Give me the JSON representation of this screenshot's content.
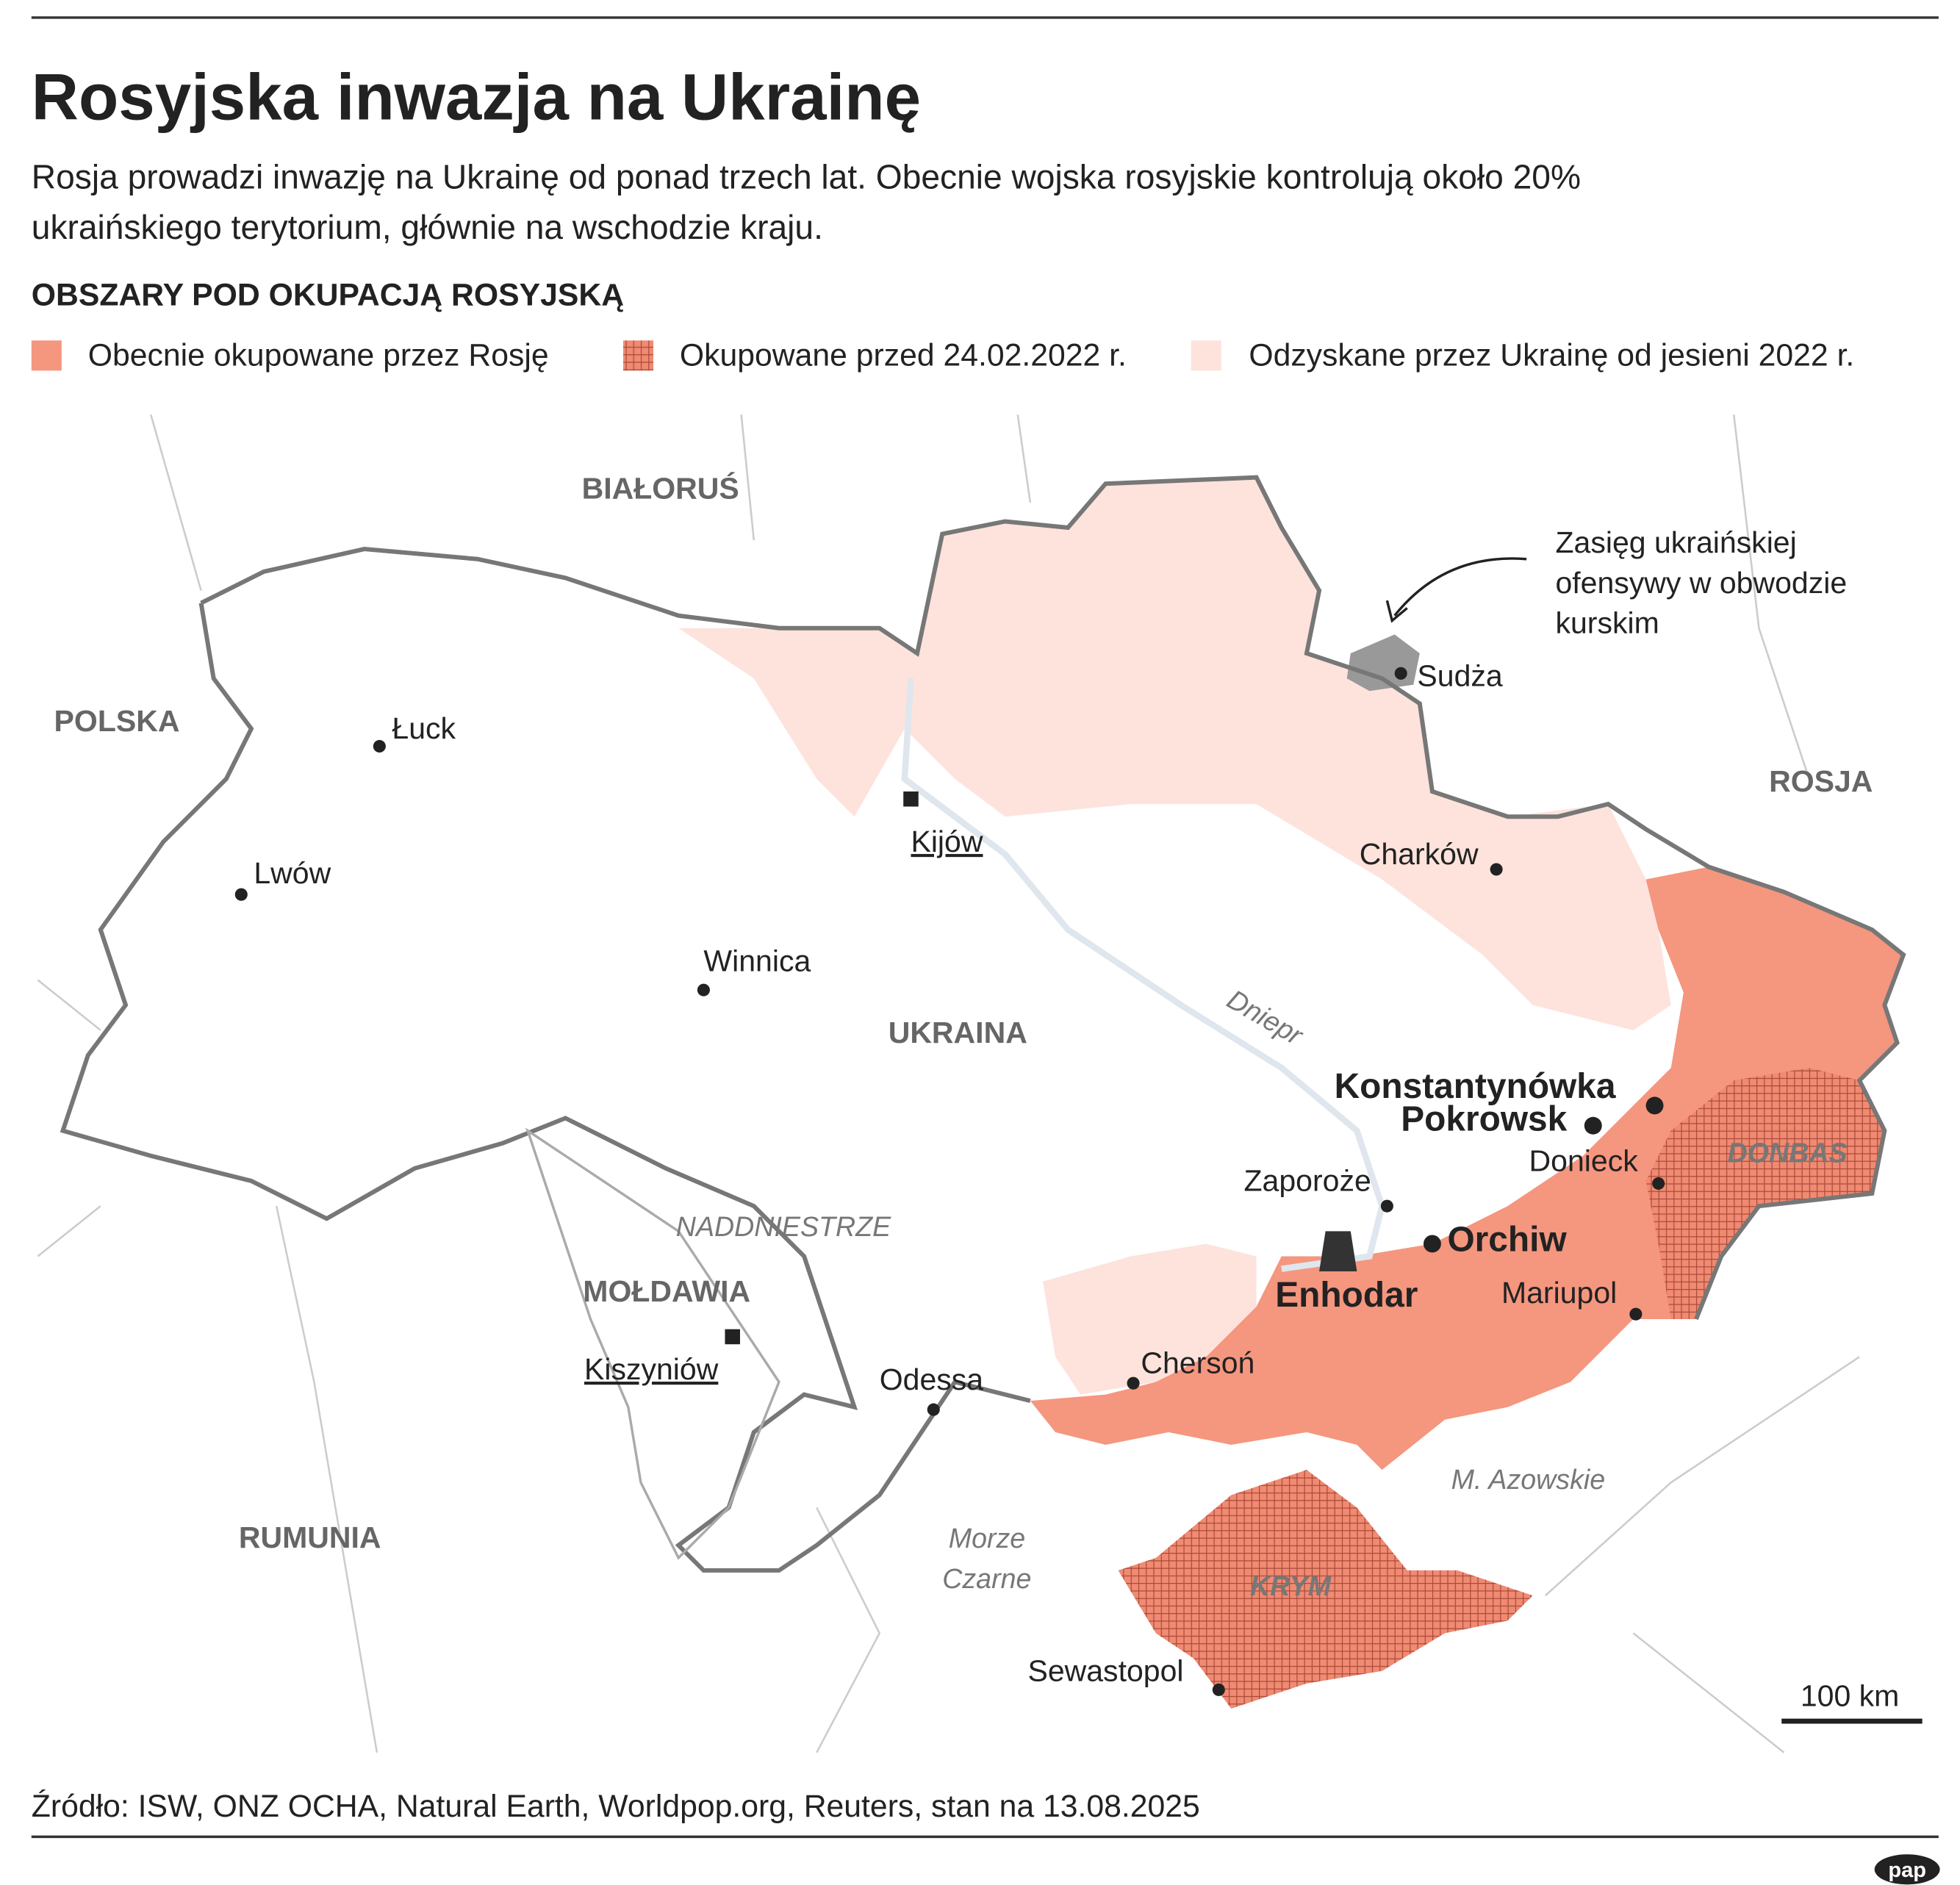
{
  "header": {
    "title": "Rosyjska inwazja na Ukrainę",
    "subtitle_lines": [
      "Rosja prowadzi inwazję na Ukrainę od ponad trzech lat. Obecnie wojska rosyjskie kontrolują około 20%",
      "ukraińskiego terytorium, głównie na wschodzie kraju."
    ],
    "section_title": "OBSZARY POD OKUPACJĄ ROSYJSKĄ"
  },
  "legend": [
    "Obecnie okupowane przez Rosję",
    "Okupowane przed 24.02.2022 r.",
    "Odzyskane przez Ukrainę od jesieni 2022 r."
  ],
  "map": {
    "countries": [
      "BIAŁORUŚ",
      "POLSKA",
      "ROSJA",
      "UKRAINA",
      "MOŁDAWIA",
      "RUMUNIA"
    ],
    "capitals": [
      "Kijów",
      "Kiszyniów"
    ],
    "cities": [
      "Łuck",
      "Lwów",
      "Winnica",
      "Charków",
      "Sudża",
      "Zaporoże",
      "Odessa",
      "Chersoń",
      "Mariupol",
      "Donieck",
      "Sewastopol"
    ],
    "key_cities": [
      "Konstantynówka",
      "Pokrowsk",
      "Orchiw",
      "Enhodar"
    ],
    "regions": [
      "NADDNIESTRZE",
      "DONBAS",
      "KRYM"
    ],
    "water": [
      "Dniepr",
      "M. Azowskie"
    ],
    "black_sea_lines": [
      "Morze",
      "Czarne"
    ],
    "annotation_lines": [
      "Zasięg ukraińskiej",
      "ofensywy w obwodzie",
      "kurskim"
    ],
    "scale": "100 km"
  },
  "source": "Źródło: ISW, ONZ OCHA, Natural Earth, Worldpop.org, Reuters, stan na 13.08.2025",
  "logo": "pap"
}
